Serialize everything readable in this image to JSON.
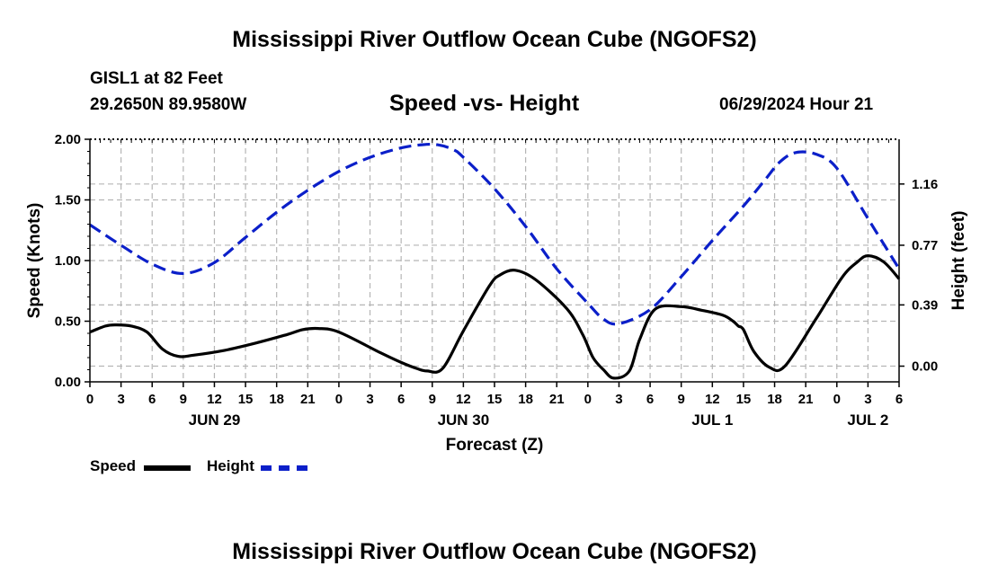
{
  "header": {
    "title": "Mississippi River Outflow Ocean Cube (NGOFS2)",
    "station": "GISL1 at 82 Feet",
    "coords": "29.2650N  89.9580W",
    "plot_title": "Speed -vs- Height",
    "forecast_time": "06/29/2024 Hour 21"
  },
  "footer": {
    "title": "Mississippi River Outflow Ocean Cube (NGOFS2)"
  },
  "chart_data": {
    "type": "line",
    "title": "Speed -vs- Height",
    "xlabel": "Forecast (Z)",
    "ylabel": "Speed (Knots)",
    "y2label": "Height (feet)",
    "xlim": [
      0,
      78
    ],
    "ylim": [
      0,
      2.0
    ],
    "y2lim": [
      -0.1,
      1.445
    ],
    "x_ticks": [
      0,
      3,
      6,
      9,
      12,
      15,
      18,
      21,
      24,
      27,
      30,
      33,
      36,
      39,
      42,
      45,
      48,
      51,
      54,
      57,
      60,
      63,
      66,
      69,
      72,
      75,
      78
    ],
    "x_tick_labels": [
      "0",
      "3",
      "6",
      "9",
      "12",
      "15",
      "18",
      "21",
      "0",
      "3",
      "6",
      "9",
      "12",
      "15",
      "18",
      "21",
      "0",
      "3",
      "6",
      "9",
      "12",
      "15",
      "18",
      "21",
      "0",
      "3",
      "6"
    ],
    "date_labels": [
      {
        "x": 12,
        "label": "JUN 29"
      },
      {
        "x": 36,
        "label": "JUN 30"
      },
      {
        "x": 60,
        "label": "JUL 1"
      },
      {
        "x": 75,
        "label": "JUL 2"
      }
    ],
    "y_ticks": [
      0.0,
      0.5,
      1.0,
      1.5,
      2.0
    ],
    "y_tick_labels": [
      "0.00",
      "0.50",
      "1.00",
      "1.50",
      "2.00"
    ],
    "y2_ticks": [
      0.0,
      0.39,
      0.77,
      1.16
    ],
    "y2_tick_labels": [
      "0.00",
      "0.39",
      "0.77",
      "1.16"
    ],
    "grid": true,
    "legend_position": "bottom-left",
    "series": [
      {
        "name": "Speed",
        "axis": "left",
        "color": "#000000",
        "style": "solid",
        "x": [
          0,
          1.5,
          2.5,
          4,
          5.5,
          7,
          8.5,
          10,
          13,
          16,
          19,
          20.5,
          22,
          24,
          28,
          30,
          31.5,
          32.5,
          34,
          36,
          38.5,
          39.5,
          41,
          43,
          46,
          47.5,
          48.5,
          49.5,
          50.5,
          52,
          53,
          54.5,
          57,
          59,
          61,
          62,
          62.5,
          63,
          64,
          65.5,
          67,
          70,
          72.5,
          74,
          75,
          76.5,
          78
        ],
        "y": [
          0.41,
          0.46,
          0.47,
          0.46,
          0.41,
          0.27,
          0.21,
          0.22,
          0.26,
          0.32,
          0.39,
          0.43,
          0.44,
          0.41,
          0.24,
          0.16,
          0.11,
          0.09,
          0.11,
          0.42,
          0.79,
          0.88,
          0.92,
          0.84,
          0.6,
          0.39,
          0.2,
          0.1,
          0.03,
          0.09,
          0.35,
          0.6,
          0.62,
          0.59,
          0.55,
          0.5,
          0.46,
          0.43,
          0.25,
          0.12,
          0.13,
          0.52,
          0.86,
          0.99,
          1.04,
          0.99,
          0.85
        ]
      },
      {
        "name": "Height",
        "axis": "right",
        "color": "#0b1fc9",
        "style": "dashed",
        "x": [
          0,
          3,
          6,
          9,
          12,
          15,
          18,
          21,
          24,
          27,
          30,
          32,
          33.5,
          35,
          36,
          39,
          42,
          45,
          48,
          49.5,
          51,
          54,
          57,
          60,
          63,
          65,
          66.5,
          68,
          70,
          72,
          75,
          78
        ],
        "y": [
          0.9,
          0.77,
          0.65,
          0.59,
          0.66,
          0.82,
          0.98,
          1.12,
          1.24,
          1.33,
          1.39,
          1.41,
          1.41,
          1.38,
          1.33,
          1.13,
          0.89,
          0.62,
          0.4,
          0.3,
          0.27,
          0.36,
          0.57,
          0.8,
          1.02,
          1.18,
          1.3,
          1.36,
          1.35,
          1.26,
          0.94,
          0.62
        ]
      }
    ]
  }
}
